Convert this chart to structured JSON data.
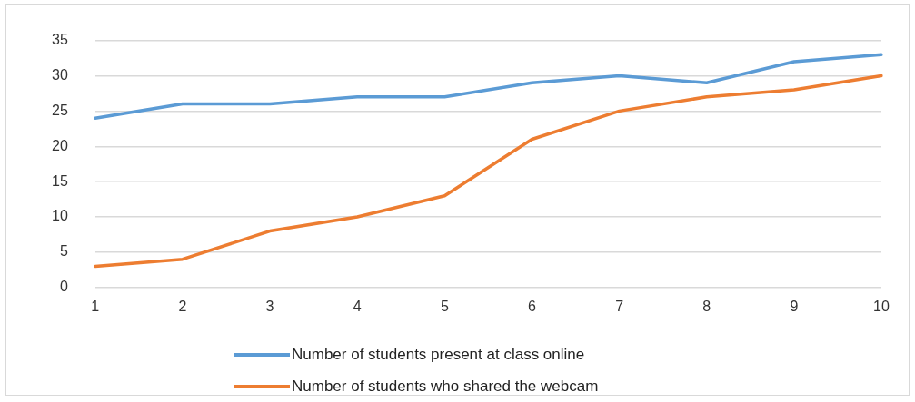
{
  "chart_data": {
    "type": "line",
    "categories": [
      "1",
      "2",
      "3",
      "4",
      "5",
      "6",
      "7",
      "8",
      "9",
      "10"
    ],
    "series": [
      {
        "name": "Number of students present at class online",
        "color": "#5b9bd5",
        "values": [
          24,
          26,
          26,
          27,
          27,
          29,
          30,
          29,
          32,
          33
        ]
      },
      {
        "name": "Number of students who shared the webcam",
        "color": "#ed7d31",
        "values": [
          3,
          4,
          8,
          10,
          13,
          21,
          25,
          27,
          28,
          30
        ]
      }
    ],
    "ylim": [
      0,
      35
    ],
    "yticks": [
      0,
      5,
      10,
      15,
      20,
      25,
      30,
      35
    ],
    "grid": "y",
    "legend": "bottom",
    "marker": "none",
    "line_style": "solid"
  }
}
